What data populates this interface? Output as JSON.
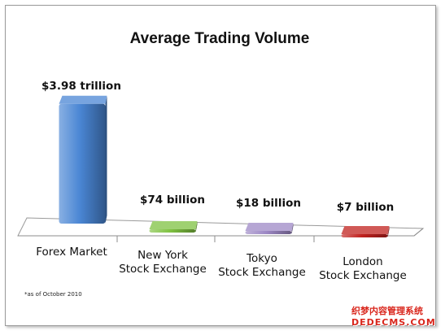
{
  "chart_data": {
    "type": "bar",
    "title": "Average Trading Volume",
    "categories": [
      "Forex Market",
      "New York\nStock Exchange",
      "Tokyo\nStock Exchange",
      "London\nStock Exchange"
    ],
    "values_billion_usd": [
      3980,
      74,
      18,
      7
    ],
    "value_labels": [
      "$3.98 trillion",
      "$74 billion",
      "$18 billion",
      "$7 billion"
    ],
    "bar_colors": [
      "#4a86d4",
      "#7fc241",
      "#9d88c5",
      "#c0211e"
    ],
    "ylim": [
      0,
      4000
    ],
    "axis_visible": false,
    "grid": false,
    "legend": "none",
    "footnote": "*as of October 2010"
  },
  "watermark": {
    "line1": "织梦内容管理系统",
    "line2": "DEDECMS.COM"
  }
}
